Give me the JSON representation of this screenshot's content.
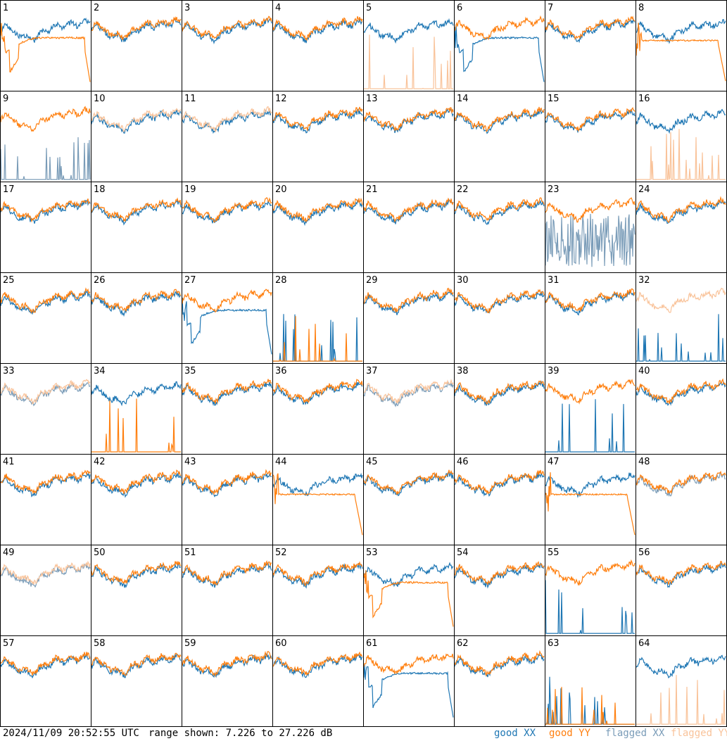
{
  "footer": {
    "timestamp": "2024/11/09 20:52:55 UTC",
    "range_text": "range shown: 7.226 to 27.226 dB"
  },
  "legend": {
    "good_xx": "good XX",
    "good_yy": "good YY",
    "flagged_xx": "flagged XX",
    "flagged_yy": "flagged YY"
  },
  "colors": {
    "good_xx": "#1f77b4",
    "good_yy": "#ff7f0e",
    "flagged_xx": "#7a9cb8",
    "flagged_yy": "#f9c39a",
    "grid_border": "#000000"
  },
  "chart_data": {
    "type": "line",
    "layout": "small-multiples 8x8",
    "y_range_db": [
      7.226,
      27.226
    ],
    "series_names": [
      "good XX",
      "good YY",
      "flagged XX",
      "flagged YY"
    ],
    "panels": [
      {
        "id": 1,
        "xx": "good",
        "yy": "good",
        "pattern": "yy_drop"
      },
      {
        "id": 2,
        "xx": "good",
        "yy": "good",
        "pattern": "normal"
      },
      {
        "id": 3,
        "xx": "good",
        "yy": "good",
        "pattern": "normal"
      },
      {
        "id": 4,
        "xx": "good",
        "yy": "good",
        "pattern": "normal"
      },
      {
        "id": 5,
        "xx": "good",
        "yy": "flagged",
        "pattern": "yy_spikes"
      },
      {
        "id": 6,
        "xx": "good",
        "yy": "good",
        "pattern": "xx_drop"
      },
      {
        "id": 7,
        "xx": "good",
        "yy": "good",
        "pattern": "normal"
      },
      {
        "id": 8,
        "xx": "good",
        "yy": "good",
        "pattern": "yy_flat"
      },
      {
        "id": 9,
        "xx": "flagged",
        "yy": "good",
        "pattern": "xx_spikes"
      },
      {
        "id": 10,
        "xx": "good",
        "yy": "flagged",
        "pattern": "normal"
      },
      {
        "id": 11,
        "xx": "good",
        "yy": "flagged",
        "pattern": "normal"
      },
      {
        "id": 12,
        "xx": "good",
        "yy": "good",
        "pattern": "normal"
      },
      {
        "id": 13,
        "xx": "good",
        "yy": "good",
        "pattern": "normal"
      },
      {
        "id": 14,
        "xx": "good",
        "yy": "good",
        "pattern": "normal"
      },
      {
        "id": 15,
        "xx": "good",
        "yy": "good",
        "pattern": "normal"
      },
      {
        "id": 16,
        "xx": "good",
        "yy": "flagged",
        "pattern": "yy_spikes"
      },
      {
        "id": 17,
        "xx": "good",
        "yy": "good",
        "pattern": "normal"
      },
      {
        "id": 18,
        "xx": "good",
        "yy": "good",
        "pattern": "normal"
      },
      {
        "id": 19,
        "xx": "good",
        "yy": "good",
        "pattern": "normal"
      },
      {
        "id": 20,
        "xx": "good",
        "yy": "good",
        "pattern": "normal"
      },
      {
        "id": 21,
        "xx": "good",
        "yy": "good",
        "pattern": "normal"
      },
      {
        "id": 22,
        "xx": "good",
        "yy": "good",
        "pattern": "normal"
      },
      {
        "id": 23,
        "xx": "flagged",
        "yy": "good",
        "pattern": "xx_noisy"
      },
      {
        "id": 24,
        "xx": "good",
        "yy": "good",
        "pattern": "normal"
      },
      {
        "id": 25,
        "xx": "good",
        "yy": "good",
        "pattern": "normal"
      },
      {
        "id": 26,
        "xx": "good",
        "yy": "good",
        "pattern": "normal"
      },
      {
        "id": 27,
        "xx": "good",
        "yy": "good",
        "pattern": "xx_drop"
      },
      {
        "id": 28,
        "xx": "good",
        "yy": "good",
        "pattern": "both_spikes"
      },
      {
        "id": 29,
        "xx": "good",
        "yy": "good",
        "pattern": "normal"
      },
      {
        "id": 30,
        "xx": "good",
        "yy": "good",
        "pattern": "normal"
      },
      {
        "id": 31,
        "xx": "good",
        "yy": "good",
        "pattern": "normal"
      },
      {
        "id": 32,
        "xx": "good",
        "yy": "flagged",
        "pattern": "xx_spikes"
      },
      {
        "id": 33,
        "xx": "flagged",
        "yy": "flagged",
        "pattern": "normal"
      },
      {
        "id": 34,
        "xx": "good",
        "yy": "good",
        "pattern": "yy_spikes"
      },
      {
        "id": 35,
        "xx": "good",
        "yy": "good",
        "pattern": "normal"
      },
      {
        "id": 36,
        "xx": "good",
        "yy": "good",
        "pattern": "normal"
      },
      {
        "id": 37,
        "xx": "flagged",
        "yy": "flagged",
        "pattern": "normal"
      },
      {
        "id": 38,
        "xx": "good",
        "yy": "good",
        "pattern": "normal"
      },
      {
        "id": 39,
        "xx": "good",
        "yy": "good",
        "pattern": "xx_spikes"
      },
      {
        "id": 40,
        "xx": "good",
        "yy": "good",
        "pattern": "normal"
      },
      {
        "id": 41,
        "xx": "good",
        "yy": "good",
        "pattern": "normal"
      },
      {
        "id": 42,
        "xx": "good",
        "yy": "good",
        "pattern": "normal"
      },
      {
        "id": 43,
        "xx": "good",
        "yy": "good",
        "pattern": "normal"
      },
      {
        "id": 44,
        "xx": "good",
        "yy": "good",
        "pattern": "yy_flat"
      },
      {
        "id": 45,
        "xx": "good",
        "yy": "good",
        "pattern": "normal"
      },
      {
        "id": 46,
        "xx": "good",
        "yy": "good",
        "pattern": "normal"
      },
      {
        "id": 47,
        "xx": "good",
        "yy": "good",
        "pattern": "yy_flat"
      },
      {
        "id": 48,
        "xx": "flagged",
        "yy": "good",
        "pattern": "normal"
      },
      {
        "id": 49,
        "xx": "flagged",
        "yy": "flagged",
        "pattern": "normal"
      },
      {
        "id": 50,
        "xx": "good",
        "yy": "good",
        "pattern": "normal"
      },
      {
        "id": 51,
        "xx": "good",
        "yy": "good",
        "pattern": "normal"
      },
      {
        "id": 52,
        "xx": "good",
        "yy": "good",
        "pattern": "normal"
      },
      {
        "id": 53,
        "xx": "good",
        "yy": "good",
        "pattern": "yy_drop"
      },
      {
        "id": 54,
        "xx": "good",
        "yy": "good",
        "pattern": "normal"
      },
      {
        "id": 55,
        "xx": "good",
        "yy": "good",
        "pattern": "xx_spikes"
      },
      {
        "id": 56,
        "xx": "good",
        "yy": "good",
        "pattern": "normal"
      },
      {
        "id": 57,
        "xx": "good",
        "yy": "good",
        "pattern": "normal"
      },
      {
        "id": 58,
        "xx": "good",
        "yy": "good",
        "pattern": "normal"
      },
      {
        "id": 59,
        "xx": "good",
        "yy": "good",
        "pattern": "normal"
      },
      {
        "id": 60,
        "xx": "good",
        "yy": "good",
        "pattern": "normal"
      },
      {
        "id": 61,
        "xx": "good",
        "yy": "good",
        "pattern": "xx_drop"
      },
      {
        "id": 62,
        "xx": "good",
        "yy": "good",
        "pattern": "normal"
      },
      {
        "id": 63,
        "xx": "good",
        "yy": "good",
        "pattern": "both_spikes"
      },
      {
        "id": 64,
        "xx": "good",
        "yy": "flagged",
        "pattern": "yy_spikes"
      }
    ]
  }
}
